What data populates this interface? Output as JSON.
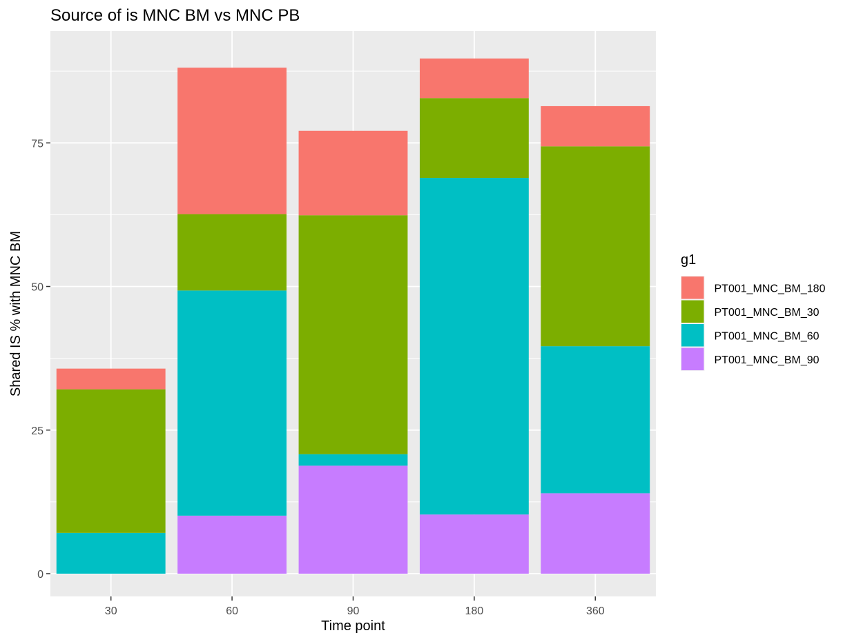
{
  "chart_data": {
    "type": "bar",
    "stacked": true,
    "title": "Source of is MNC BM vs MNC PB",
    "xlabel": "Time point",
    "ylabel": "Shared IS % with MNC BM",
    "categories": [
      "30",
      "60",
      "90",
      "180",
      "360"
    ],
    "ylim": [
      0,
      90
    ],
    "yticks": [
      0,
      25,
      50,
      75
    ],
    "grid": true,
    "legend": {
      "title": "g1",
      "position": "right",
      "entries": [
        "PT001_MNC_BM_180",
        "PT001_MNC_BM_30",
        "PT001_MNC_BM_60",
        "PT001_MNC_BM_90"
      ]
    },
    "stack_order_bottom_to_top": [
      "PT001_MNC_BM_90",
      "PT001_MNC_BM_60",
      "PT001_MNC_BM_30",
      "PT001_MNC_BM_180"
    ],
    "series": [
      {
        "name": "PT001_MNC_BM_180",
        "color": "#F8766D",
        "values": [
          3.6,
          25.5,
          14.7,
          6.9,
          7.0
        ]
      },
      {
        "name": "PT001_MNC_BM_30",
        "color": "#7CAE00",
        "values": [
          25.0,
          13.3,
          41.6,
          13.9,
          34.8
        ]
      },
      {
        "name": "PT001_MNC_BM_60",
        "color": "#00BFC4",
        "values": [
          7.1,
          39.2,
          2.0,
          58.6,
          25.6
        ]
      },
      {
        "name": "PT001_MNC_BM_90",
        "color": "#C77CFF",
        "values": [
          0,
          10.1,
          18.8,
          10.3,
          14.0
        ]
      }
    ]
  }
}
